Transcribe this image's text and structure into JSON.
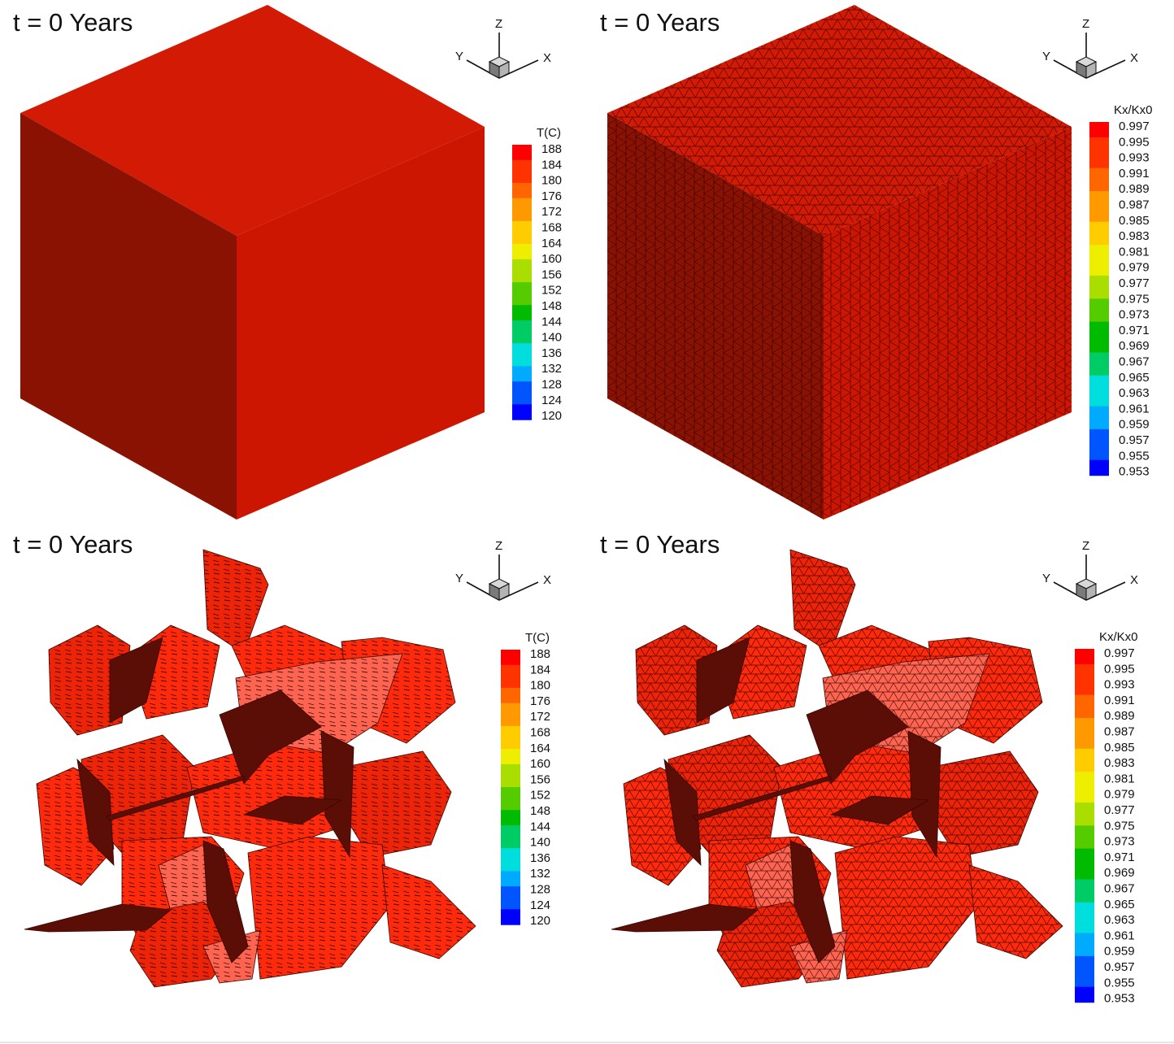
{
  "panels": [
    {
      "title": "t = 0 Years",
      "style": "solid",
      "legend": "temperature"
    },
    {
      "title": "t = 0 Years",
      "style": "mesh",
      "legend": "permeability"
    },
    {
      "title": "t = 0 Years",
      "style": "fractures-vectors",
      "legend": "temperature"
    },
    {
      "title": "t = 0 Years",
      "style": "fractures-mesh",
      "legend": "permeability"
    }
  ],
  "axes": {
    "x": "X",
    "y": "Y",
    "z": "Z"
  },
  "legends": {
    "temperature": {
      "title": "T(C)",
      "ticks": [
        "188",
        "184",
        "180",
        "176",
        "172",
        "168",
        "164",
        "160",
        "156",
        "152",
        "148",
        "144",
        "140",
        "136",
        "132",
        "128",
        "124",
        "120"
      ]
    },
    "permeability": {
      "title": "Kx/Kx0",
      "ticks": [
        "0.997",
        "0.995",
        "0.993",
        "0.991",
        "0.989",
        "0.987",
        "0.985",
        "0.983",
        "0.981",
        "0.979",
        "0.977",
        "0.975",
        "0.973",
        "0.971",
        "0.969",
        "0.967",
        "0.965",
        "0.963",
        "0.961",
        "0.959",
        "0.957",
        "0.955",
        "0.953"
      ]
    }
  },
  "colors": {
    "top_face": "#d21a04",
    "right_face": "#cc1602",
    "left_face": "#8a1202",
    "fracture_bright": "#ff2a0c",
    "fracture_mid": "#ee2408",
    "fracture_light": "#ff6450",
    "fracture_dark": "#5a0e06",
    "mesh_line": "#2a0000",
    "colormap": [
      "#ff0000",
      "#ff3300",
      "#ff6600",
      "#ff9900",
      "#ffcc00",
      "#eeee00",
      "#aadd00",
      "#55cc00",
      "#00bb00",
      "#00cc66",
      "#00dddd",
      "#00aaff",
      "#0055ff",
      "#0000ff"
    ]
  }
}
